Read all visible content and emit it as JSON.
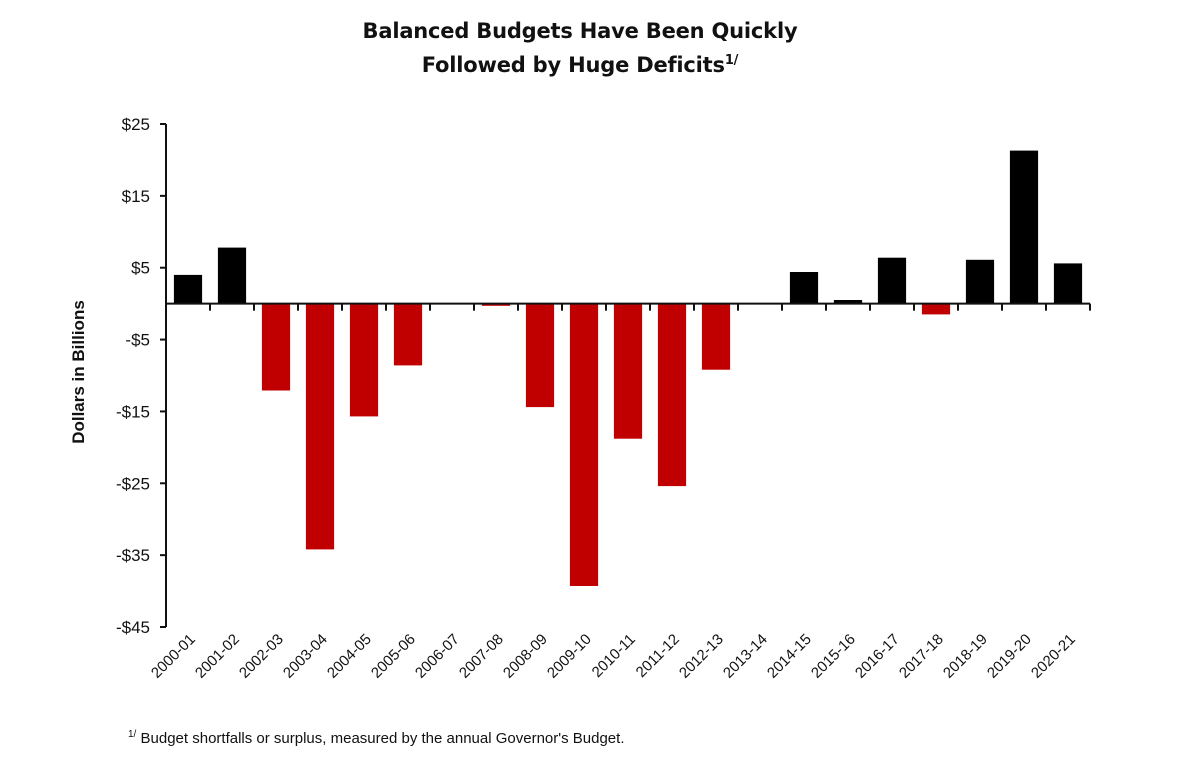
{
  "chart_data": {
    "type": "bar",
    "title": "Balanced Budgets Have Been Quickly",
    "title_line2": "Followed by Huge Deficits",
    "title_superscript": "1/",
    "xlabel": "",
    "ylabel": "Dollars in Billions",
    "ylim": [
      -45,
      25
    ],
    "yticks": [
      25,
      15,
      5,
      -5,
      -15,
      -25,
      -35,
      -45
    ],
    "ytick_labels": [
      "$25",
      "$15",
      "$5",
      "-$5",
      "-$15",
      "-$25",
      "-$35",
      "-$45"
    ],
    "grid": false,
    "legend": "none",
    "categories": [
      "2000-01",
      "2001-02",
      "2002-03",
      "2003-04",
      "2004-05",
      "2005-06",
      "2006-07",
      "2007-08",
      "2008-09",
      "2009-10",
      "2010-11",
      "2011-12",
      "2012-13",
      "2013-14",
      "2014-15",
      "2015-16",
      "2016-17",
      "2017-18",
      "2018-19",
      "2019-20",
      "2020-21"
    ],
    "values": [
      4.0,
      7.8,
      -12.1,
      -34.2,
      -15.7,
      -8.6,
      0,
      -0.3,
      -14.4,
      -39.3,
      -18.8,
      -25.4,
      -9.2,
      0,
      4.4,
      0.5,
      6.4,
      -1.5,
      6.1,
      21.3,
      5.6
    ],
    "colors": {
      "positive": "#000000",
      "negative": "#C00000"
    },
    "footnote_marker": "1/",
    "footnote": "Budget shortfalls or surplus, measured by the annual Governor's Budget."
  }
}
